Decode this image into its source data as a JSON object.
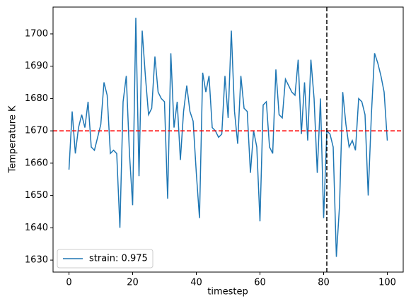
{
  "chart_data": {
    "type": "line",
    "x_label": "timestep",
    "y_label": "Temperature K",
    "x": [
      0,
      1,
      2,
      3,
      4,
      5,
      6,
      7,
      8,
      9,
      10,
      11,
      12,
      13,
      14,
      15,
      16,
      17,
      18,
      19,
      20,
      21,
      22,
      23,
      24,
      25,
      26,
      27,
      28,
      29,
      30,
      31,
      32,
      33,
      34,
      35,
      36,
      37,
      38,
      39,
      40,
      41,
      42,
      43,
      44,
      45,
      46,
      47,
      48,
      49,
      50,
      51,
      52,
      53,
      54,
      55,
      56,
      57,
      58,
      59,
      60,
      61,
      62,
      63,
      64,
      65,
      66,
      67,
      68,
      69,
      70,
      71,
      72,
      73,
      74,
      75,
      76,
      77,
      78,
      79,
      80,
      81,
      82,
      83,
      84,
      85,
      86,
      87,
      88,
      89,
      90,
      91,
      92,
      93,
      94,
      95,
      96,
      97,
      98,
      99,
      100
    ],
    "series": [
      {
        "name": "strain: 0.975",
        "color": "#1f77b4",
        "values": [
          1658,
          1676,
          1663,
          1671,
          1675,
          1671,
          1679,
          1665,
          1664,
          1668,
          1672,
          1685,
          1681,
          1663,
          1664,
          1663,
          1640,
          1679,
          1687,
          1663,
          1647,
          1705,
          1656,
          1701,
          1687,
          1675,
          1677,
          1693,
          1682,
          1680,
          1679,
          1649,
          1694,
          1671,
          1679,
          1661,
          1676,
          1684,
          1676,
          1673,
          1657,
          1643,
          1688,
          1682,
          1687,
          1671,
          1670,
          1668,
          1669,
          1687,
          1674,
          1701,
          1676,
          1666,
          1687,
          1677,
          1676,
          1657,
          1670,
          1665,
          1642,
          1678,
          1679,
          1665,
          1663,
          1689,
          1675,
          1674,
          1686,
          1684,
          1682,
          1681,
          1692,
          1669,
          1685,
          1667,
          1692,
          1680,
          1657,
          1680,
          1643,
          1670,
          1669,
          1665,
          1631,
          1647,
          1682,
          1672,
          1665,
          1667,
          1664,
          1680,
          1679,
          1675,
          1650,
          1675,
          1694,
          1691,
          1687,
          1682,
          1667
        ]
      }
    ],
    "hlines": [
      {
        "value": 1670,
        "color": "#ff0000"
      }
    ],
    "vlines": [
      {
        "value": 81,
        "color": "#000000"
      }
    ],
    "xlim": [
      -5,
      105
    ],
    "ylim": [
      1626.3,
      1708.3
    ],
    "xticks": [
      0,
      20,
      40,
      60,
      80,
      100
    ],
    "yticks": [
      1630,
      1640,
      1650,
      1660,
      1670,
      1680,
      1690,
      1700
    ],
    "legend": "lower left"
  }
}
